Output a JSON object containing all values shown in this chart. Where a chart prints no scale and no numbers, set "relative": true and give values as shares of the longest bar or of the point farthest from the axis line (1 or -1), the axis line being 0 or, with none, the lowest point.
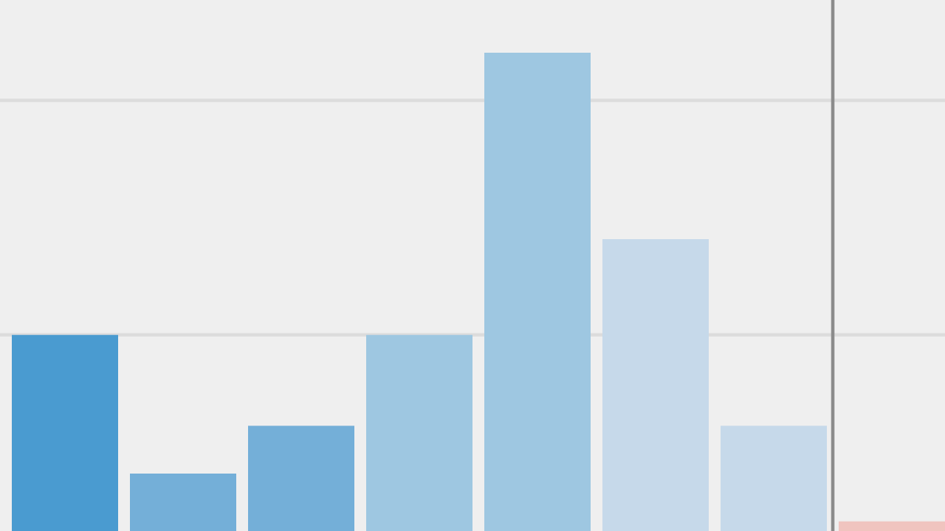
{
  "chart_data": {
    "type": "bar",
    "relative": true,
    "categories": [
      null,
      null,
      null,
      null,
      null,
      null,
      null,
      null
    ],
    "values": [
      0.41,
      0.12,
      0.22,
      0.41,
      1,
      0.61,
      0.22,
      0.02
    ],
    "colors": [
      "#4a9bd0",
      "#74afd8",
      "#74afd8",
      "#9ec7e1",
      "#9ec7e1",
      "#c6d9ea",
      "#c6d9ea",
      "#f0c4bf"
    ],
    "ref_lines": [
      {
        "axis": "y",
        "value": 0.41,
        "color": "#dcdcdc"
      },
      {
        "axis": "y",
        "value": 0.9,
        "color": "#dcdcdc"
      }
    ]
  }
}
